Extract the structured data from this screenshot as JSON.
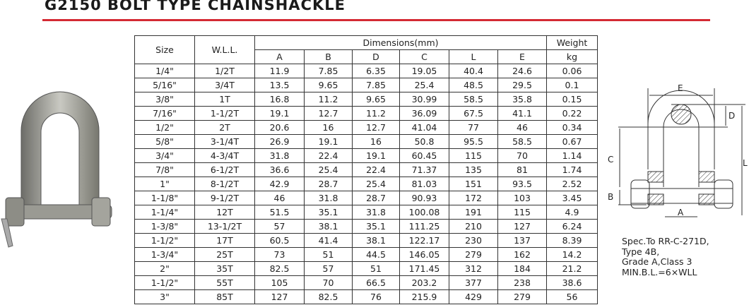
{
  "title": "G2150 BOLT TYPE CHAINSHACKLE",
  "accent_color": "#d42a33",
  "table": {
    "headers": {
      "size": "Size",
      "wll": "W.L.L.",
      "dimensions": "Dimensions(mm)",
      "weight": "Weight",
      "dims": [
        "A",
        "B",
        "D",
        "C",
        "L",
        "E"
      ],
      "weight_unit": "kg"
    },
    "rows": [
      [
        "1/4\"",
        "1/2T",
        "11.9",
        "7.85",
        "6.35",
        "19.05",
        "40.4",
        "24.6",
        "0.06"
      ],
      [
        "5/16\"",
        "3/4T",
        "13.5",
        "9.65",
        "7.85",
        "25.4",
        "48.5",
        "29.5",
        "0.1"
      ],
      [
        "3/8\"",
        "1T",
        "16.8",
        "11.2",
        "9.65",
        "30.99",
        "58.5",
        "35.8",
        "0.15"
      ],
      [
        "7/16\"",
        "1-1/2T",
        "19.1",
        "12.7",
        "11.2",
        "36.09",
        "67.5",
        "41.1",
        "0.22"
      ],
      [
        "1/2\"",
        "2T",
        "20.6",
        "16",
        "12.7",
        "41.04",
        "77",
        "46",
        "0.34"
      ],
      [
        "5/8\"",
        "3-1/4T",
        "26.9",
        "19.1",
        "16",
        "50.8",
        "95.5",
        "58.5",
        "0.67"
      ],
      [
        "3/4\"",
        "4-3/4T",
        "31.8",
        "22.4",
        "19.1",
        "60.45",
        "115",
        "70",
        "1.14"
      ],
      [
        "7/8\"",
        "6-1/2T",
        "36.6",
        "25.4",
        "22.4",
        "71.37",
        "135",
        "81",
        "1.74"
      ],
      [
        "1\"",
        "8-1/2T",
        "42.9",
        "28.7",
        "25.4",
        "81.03",
        "151",
        "93.5",
        "2.52"
      ],
      [
        "1-1/8\"",
        "9-1/2T",
        "46",
        "31.8",
        "28.7",
        "90.93",
        "172",
        "103",
        "3.45"
      ],
      [
        "1-1/4\"",
        "12T",
        "51.5",
        "35.1",
        "31.8",
        "100.08",
        "191",
        "115",
        "4.9"
      ],
      [
        "1-3/8\"",
        "13-1/2T",
        "57",
        "38.1",
        "35.1",
        "111.25",
        "210",
        "127",
        "6.24"
      ],
      [
        "1-1/2\"",
        "17T",
        "60.5",
        "41.4",
        "38.1",
        "122.17",
        "230",
        "137",
        "8.39"
      ],
      [
        "1-3/4\"",
        "25T",
        "73",
        "51",
        "44.5",
        "146.05",
        "279",
        "162",
        "14.2"
      ],
      [
        "2\"",
        "35T",
        "82.5",
        "57",
        "51",
        "171.45",
        "312",
        "184",
        "21.2"
      ],
      [
        "1-1/2\"",
        "55T",
        "105",
        "70",
        "66.5",
        "203.2",
        "377",
        "238",
        "38.6"
      ],
      [
        "3\"",
        "85T",
        "127",
        "82.5",
        "76",
        "215.9",
        "429",
        "279",
        "56"
      ]
    ]
  },
  "diagram": {
    "labels": {
      "E": "E",
      "D": "D",
      "C": "C",
      "L": "L",
      "B": "B",
      "A": "A"
    }
  },
  "spec": [
    "Spec.To RR-C-271D,",
    "Type 4B,",
    "Grade A,Class 3",
    "MIN.B.L.=6×WLL"
  ]
}
